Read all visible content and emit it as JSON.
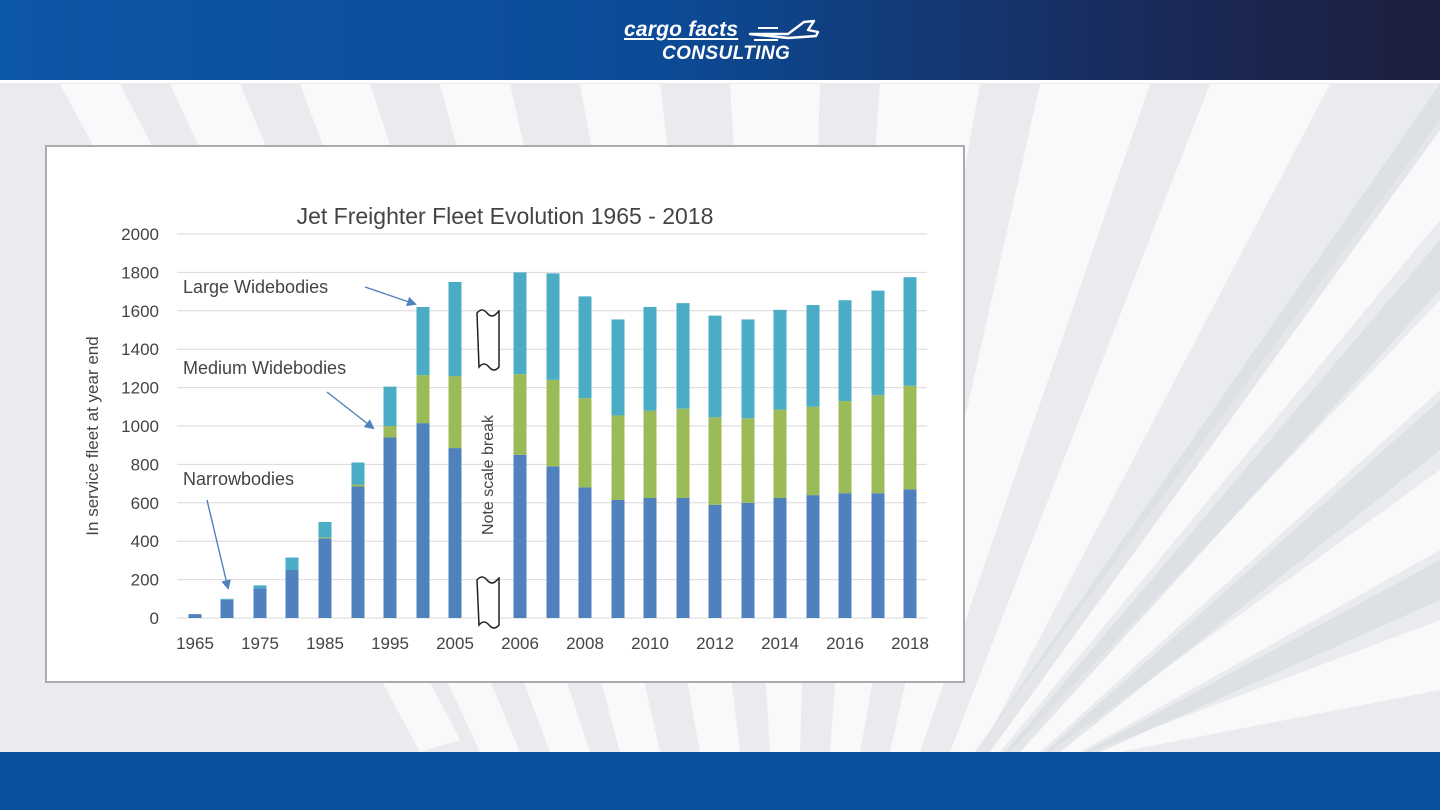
{
  "header": {
    "logo_line1": "cargo facts",
    "logo_line2": "CONSULTING",
    "plane_icon": "airplane-icon"
  },
  "colors": {
    "header_blue": "#0b4c98",
    "footer_blue": "#0a50a0",
    "narrowbodies": "#4f81bd",
    "medium_widebodies": "#9bbb59",
    "large_widebodies": "#4bacc6"
  },
  "chart_data": {
    "type": "bar",
    "stacked": true,
    "title": "Jet Freighter Fleet Evolution 1965 - 2018",
    "xlabel": "",
    "ylabel": "In service fleet at year end",
    "ylim": [
      0,
      2000
    ],
    "yticks": [
      "0",
      "200",
      "400",
      "600",
      "800",
      "1000",
      "1200",
      "1400",
      "1600",
      "1800",
      "2000"
    ],
    "grid": true,
    "legend": "none",
    "categories": [
      "1965",
      "1970",
      "1975",
      "1980",
      "1985",
      "1990",
      "1995",
      "2000",
      "2005",
      "2006",
      "2007",
      "2008",
      "2009",
      "2010",
      "2011",
      "2012",
      "2013",
      "2014",
      "2015",
      "2016",
      "2017",
      "2018"
    ],
    "tick_labels": [
      "1965",
      "1975",
      "1985",
      "1995",
      "2005",
      "2006",
      "2008",
      "2010",
      "2012",
      "2014",
      "2016",
      "2018"
    ],
    "series": [
      {
        "name": "Narrowbodies",
        "color": "#4f81bd",
        "values": [
          20,
          95,
          155,
          250,
          415,
          685,
          940,
          1015,
          885,
          850,
          790,
          680,
          615,
          625,
          625,
          590,
          600,
          625,
          640,
          650,
          650,
          670
        ]
      },
      {
        "name": "Medium Widebodies",
        "color": "#9bbb59",
        "values": [
          0,
          0,
          0,
          0,
          5,
          10,
          60,
          250,
          375,
          420,
          450,
          465,
          440,
          455,
          465,
          455,
          440,
          460,
          460,
          480,
          510,
          540
        ]
      },
      {
        "name": "Large Widebodies",
        "color": "#4bacc6",
        "values": [
          0,
          5,
          15,
          65,
          80,
          115,
          205,
          355,
          490,
          530,
          555,
          530,
          500,
          540,
          550,
          530,
          515,
          520,
          530,
          525,
          545,
          565
        ]
      }
    ],
    "annotations": [
      {
        "text": "Large Widebodies"
      },
      {
        "text": "Medium Widebodies"
      },
      {
        "text": "Narrowbodies"
      },
      {
        "text": "Note scale break"
      }
    ]
  }
}
